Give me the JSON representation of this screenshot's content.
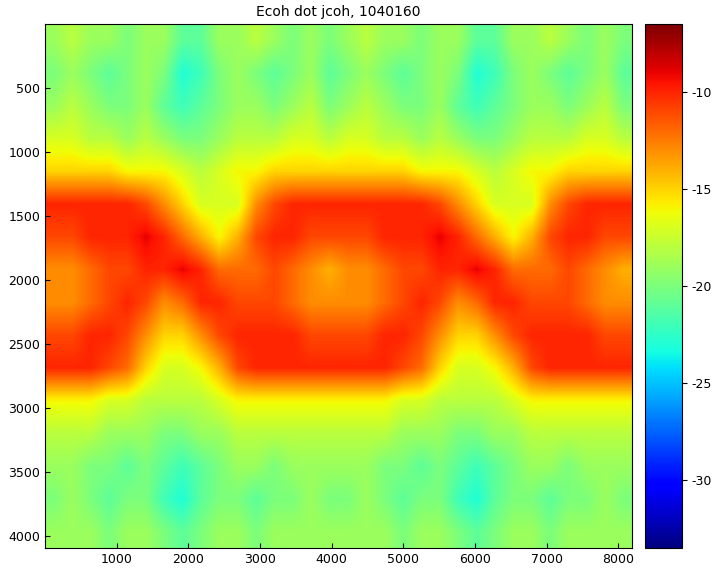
{
  "chart_data": {
    "type": "heatmap",
    "title": "Ecoh dot jcoh, 1040160",
    "xlim": [
      0,
      8192
    ],
    "ylim": [
      4096,
      0
    ],
    "xticks": [
      1000,
      2000,
      3000,
      4000,
      5000,
      6000,
      7000,
      8000
    ],
    "yticks": [
      500,
      1000,
      1500,
      2000,
      2500,
      3000,
      3500,
      4000
    ],
    "colorbar_range": [
      -33.5,
      -6.5
    ],
    "colorbar_ticks": [
      -30,
      -25,
      -20,
      -15,
      -10
    ],
    "cells": [
      [
        -19,
        -18,
        -19,
        -19,
        -20,
        -19,
        -19,
        -21,
        -21,
        -19,
        -19,
        -18,
        -19,
        -20,
        -19,
        -20,
        -19,
        -18,
        -19,
        -19,
        -20,
        -19,
        -19,
        -21,
        -21,
        -19,
        -19,
        -18,
        -19,
        -20,
        -19,
        -20
      ],
      [
        -20,
        -19,
        -20,
        -21,
        -20,
        -19,
        -20,
        -23,
        -22,
        -20,
        -19,
        -20,
        -21,
        -20,
        -19,
        -21,
        -20,
        -19,
        -20,
        -21,
        -20,
        -19,
        -20,
        -23,
        -22,
        -20,
        -19,
        -20,
        -21,
        -20,
        -19,
        -21
      ],
      [
        -19,
        -18,
        -19,
        -20,
        -20,
        -19,
        -21,
        -22,
        -21,
        -20,
        -19,
        -19,
        -20,
        -19,
        -18,
        -20,
        -19,
        -18,
        -19,
        -20,
        -20,
        -19,
        -21,
        -22,
        -21,
        -20,
        -19,
        -19,
        -20,
        -19,
        -18,
        -20
      ],
      [
        -17,
        -17,
        -18,
        -18,
        -19,
        -18,
        -19,
        -20,
        -20,
        -19,
        -18,
        -18,
        -18,
        -17,
        -17,
        -18,
        -17,
        -17,
        -18,
        -18,
        -19,
        -18,
        -19,
        -20,
        -20,
        -19,
        -18,
        -18,
        -18,
        -17,
        -17,
        -18
      ],
      [
        -15,
        -15,
        -15,
        -15,
        -16,
        -16,
        -16,
        -17,
        -18,
        -17,
        -16,
        -16,
        -15,
        -15,
        -15,
        -15,
        -15,
        -15,
        -15,
        -15,
        -16,
        -16,
        -16,
        -17,
        -18,
        -17,
        -16,
        -16,
        -15,
        -15,
        -15,
        -15
      ],
      [
        -10,
        -10,
        -10,
        -10,
        -10,
        -11,
        -13,
        -15,
        -17,
        -17,
        -17,
        -13,
        -11,
        -10,
        -10,
        -10,
        -10,
        -10,
        -10,
        -10,
        -10,
        -11,
        -13,
        -15,
        -17,
        -17,
        -17,
        -13,
        -11,
        -10,
        -10,
        -10
      ],
      [
        -11,
        -11,
        -10,
        -10,
        -10,
        -9,
        -10,
        -12,
        -14,
        -16,
        -14,
        -11,
        -10,
        -10,
        -11,
        -11,
        -11,
        -11,
        -10,
        -10,
        -10,
        -9,
        -10,
        -12,
        -14,
        -16,
        -14,
        -11,
        -10,
        -10,
        -11,
        -11
      ],
      [
        -13,
        -13,
        -12,
        -11,
        -11,
        -10,
        -10,
        -9,
        -10,
        -12,
        -12,
        -12,
        -11,
        -12,
        -13,
        -14,
        -13,
        -13,
        -12,
        -11,
        -11,
        -10,
        -10,
        -9,
        -10,
        -12,
        -12,
        -12,
        -11,
        -12,
        -13,
        -14
      ],
      [
        -13,
        -13,
        -12,
        -11,
        -10,
        -11,
        -13,
        -12,
        -10,
        -10,
        -11,
        -11,
        -11,
        -12,
        -13,
        -13,
        -13,
        -13,
        -12,
        -11,
        -10,
        -11,
        -13,
        -12,
        -10,
        -10,
        -11,
        -11,
        -11,
        -12,
        -13,
        -13
      ],
      [
        -11,
        -11,
        -10,
        -10,
        -11,
        -13,
        -15,
        -15,
        -13,
        -11,
        -10,
        -10,
        -10,
        -10,
        -11,
        -11,
        -11,
        -11,
        -10,
        -10,
        -11,
        -13,
        -15,
        -15,
        -13,
        -11,
        -10,
        -10,
        -10,
        -10,
        -11,
        -11
      ],
      [
        -10,
        -10,
        -10,
        -11,
        -12,
        -15,
        -17,
        -17,
        -16,
        -14,
        -11,
        -10,
        -10,
        -10,
        -10,
        -10,
        -10,
        -10,
        -10,
        -11,
        -12,
        -15,
        -17,
        -17,
        -16,
        -14,
        -11,
        -10,
        -10,
        -10,
        -10,
        -10
      ],
      [
        -16,
        -16,
        -16,
        -17,
        -17,
        -18,
        -18,
        -18,
        -18,
        -17,
        -16,
        -16,
        -16,
        -16,
        -16,
        -16,
        -16,
        -16,
        -16,
        -17,
        -17,
        -18,
        -18,
        -18,
        -18,
        -17,
        -16,
        -16,
        -16,
        -16,
        -16,
        -16
      ],
      [
        -18,
        -18,
        -18,
        -19,
        -19,
        -19,
        -20,
        -20,
        -19,
        -19,
        -18,
        -18,
        -18,
        -18,
        -18,
        -18,
        -18,
        -18,
        -18,
        -19,
        -19,
        -19,
        -20,
        -20,
        -19,
        -19,
        -18,
        -18,
        -18,
        -18,
        -18,
        -18
      ],
      [
        -19,
        -19,
        -20,
        -20,
        -21,
        -20,
        -21,
        -22,
        -21,
        -20,
        -19,
        -19,
        -20,
        -19,
        -19,
        -19,
        -19,
        -19,
        -20,
        -20,
        -21,
        -20,
        -21,
        -22,
        -21,
        -20,
        -19,
        -19,
        -20,
        -19,
        -19,
        -19
      ],
      [
        -20,
        -19,
        -20,
        -21,
        -20,
        -20,
        -22,
        -23,
        -21,
        -20,
        -20,
        -21,
        -20,
        -20,
        -19,
        -20,
        -20,
        -19,
        -20,
        -21,
        -20,
        -20,
        -22,
        -23,
        -21,
        -20,
        -20,
        -21,
        -20,
        -20,
        -19,
        -20
      ],
      [
        -19,
        -19,
        -19,
        -20,
        -19,
        -19,
        -20,
        -21,
        -20,
        -19,
        -19,
        -20,
        -19,
        -19,
        -19,
        -19,
        -19,
        -19,
        -19,
        -20,
        -19,
        -19,
        -20,
        -21,
        -20,
        -19,
        -19,
        -20,
        -19,
        -19,
        -19,
        -19
      ]
    ]
  }
}
